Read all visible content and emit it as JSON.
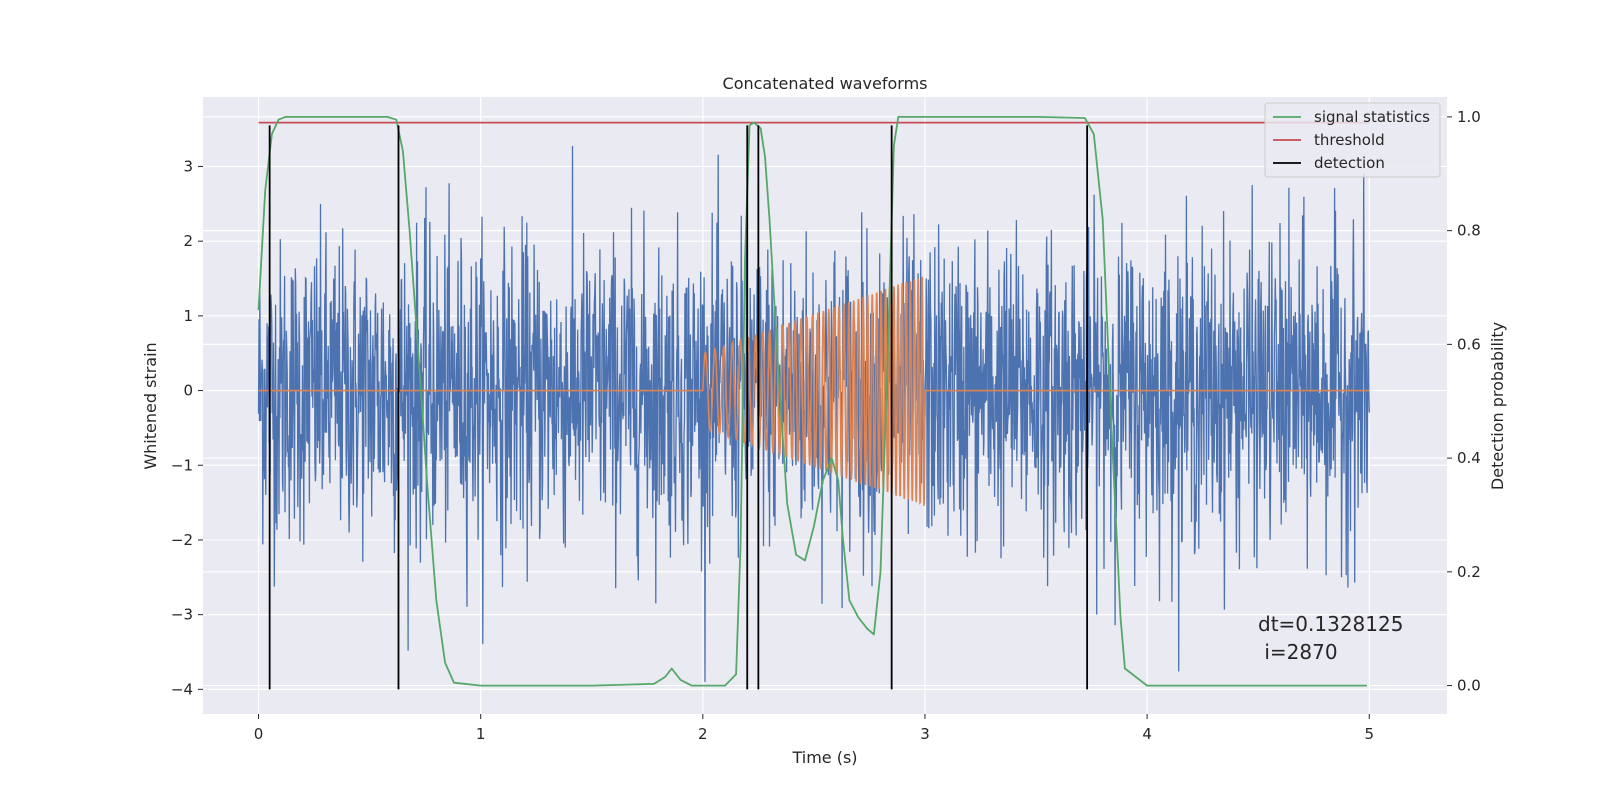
{
  "chart_data": {
    "type": "line",
    "title": "Concatenated waveforms",
    "xlabel": "Time (s)",
    "ylabel": "Whitened strain",
    "y2label": "Detection probability",
    "xlim": [
      -0.25,
      5.35
    ],
    "ylim": [
      -4.33,
      3.93
    ],
    "y2lim": [
      -0.05,
      1.035
    ],
    "xticks": [
      0,
      1,
      2,
      3,
      4,
      5
    ],
    "yticks": [
      -4,
      -3,
      -2,
      -1,
      0,
      1,
      2,
      3
    ],
    "y2ticks": [
      0.0,
      0.2,
      0.4,
      0.6,
      0.8,
      1.0
    ],
    "xtick_labels": [
      "0",
      "1",
      "2",
      "3",
      "4",
      "5"
    ],
    "ytick_labels": [
      "−4",
      "−3",
      "−2",
      "−1",
      "0",
      "1",
      "2",
      "3"
    ],
    "y2tick_labels": [
      "0.0",
      "0.2",
      "0.4",
      "0.6",
      "0.8",
      "1.0"
    ],
    "grid": true,
    "style": "seaborn-darkgrid",
    "colors": {
      "background": "#eaeaf2",
      "grid": "#ffffff",
      "strain": "#4c72b0",
      "template": "#dd8452",
      "signal_statistics": "#55a868",
      "threshold": "#c44e52",
      "detection": "#000000"
    },
    "series": [
      {
        "name": "signal statistics",
        "axis": "right",
        "x": [
          0.0,
          0.03,
          0.06,
          0.09,
          0.12,
          0.2,
          0.4,
          0.58,
          0.62,
          0.65,
          0.68,
          0.72,
          0.76,
          0.8,
          0.84,
          0.88,
          1.0,
          1.5,
          1.78,
          1.83,
          1.86,
          1.9,
          1.95,
          2.1,
          2.15,
          2.17,
          2.19,
          2.21,
          2.23,
          2.26,
          2.28,
          2.3,
          2.34,
          2.38,
          2.42,
          2.46,
          2.5,
          2.54,
          2.58,
          2.61,
          2.63,
          2.66,
          2.7,
          2.74,
          2.77,
          2.8,
          2.83,
          2.86,
          2.88,
          2.92,
          3.0,
          3.5,
          3.72,
          3.76,
          3.8,
          3.84,
          3.88,
          3.9,
          4.0,
          4.5,
          4.99
        ],
        "y": [
          0.66,
          0.87,
          0.97,
          0.995,
          1.0,
          1.0,
          1.0,
          1.0,
          0.995,
          0.94,
          0.8,
          0.58,
          0.35,
          0.15,
          0.04,
          0.005,
          0.0,
          0.0,
          0.003,
          0.015,
          0.03,
          0.01,
          0.0,
          0.0,
          0.02,
          0.25,
          0.75,
          0.985,
          0.99,
          0.98,
          0.93,
          0.82,
          0.55,
          0.32,
          0.23,
          0.22,
          0.28,
          0.36,
          0.4,
          0.36,
          0.26,
          0.15,
          0.12,
          0.1,
          0.09,
          0.2,
          0.55,
          0.95,
          1.0,
          1.0,
          1.0,
          1.0,
          0.998,
          0.97,
          0.82,
          0.45,
          0.12,
          0.03,
          0.0,
          0.0,
          0.0
        ]
      },
      {
        "name": "threshold",
        "axis": "right",
        "x": [
          0.0,
          5.0
        ],
        "y": [
          0.99,
          0.99
        ]
      },
      {
        "name": "detection",
        "axis": "left",
        "type": "vlines",
        "x": [
          0.05,
          0.63,
          2.2,
          2.25,
          2.85,
          3.73
        ],
        "ymin": -4,
        "ymax": 3.55
      },
      {
        "axis": "left",
        "type": "noise",
        "x_range": [
          0.0,
          5.0
        ],
        "typical_amplitude": 1.0,
        "peak_amplitude": 3.5
      },
      {
        "axis": "left",
        "type": "chirp",
        "x": [
          0.0,
          2.0,
          3.0,
          5.0
        ],
        "amplitude_start": 0.5,
        "amplitude_end": 1.55,
        "segment": [
          2.0,
          3.0
        ]
      }
    ],
    "legend": {
      "position": "upper right",
      "entries": [
        "signal statistics",
        "threshold",
        "detection"
      ]
    },
    "annotation": {
      "line1": "dt=0.1328125",
      "line2": " i=2870"
    }
  }
}
